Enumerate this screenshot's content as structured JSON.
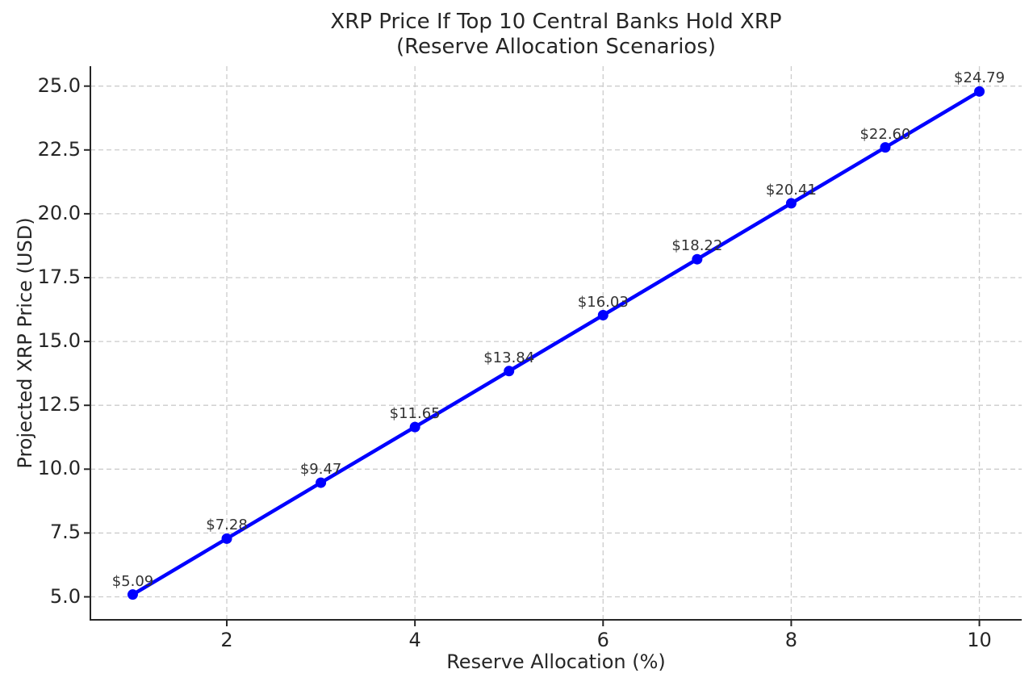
{
  "chart_data": {
    "type": "line",
    "title": "XRP Price If Top 10 Central Banks Hold XRP",
    "subtitle": "(Reserve Allocation Scenarios)",
    "xlabel": "Reserve Allocation (%)",
    "ylabel": "Projected XRP Price (USD)",
    "series": [
      {
        "name": "Projected XRP Price",
        "x": [
          1,
          2,
          3,
          4,
          5,
          6,
          7,
          8,
          9,
          10
        ],
        "y": [
          5.09,
          7.28,
          9.47,
          11.65,
          13.84,
          16.03,
          18.22,
          20.41,
          22.6,
          24.79
        ],
        "point_labels": [
          "$5.09",
          "$7.28",
          "$9.47",
          "$11.65",
          "$13.84",
          "$16.03",
          "$18.22",
          "$20.41",
          "$22.60",
          "$24.79"
        ],
        "color": "#0000ff",
        "marker": "circle"
      }
    ],
    "xticks": [
      2,
      4,
      6,
      8,
      10
    ],
    "xtick_labels": [
      "2",
      "4",
      "6",
      "8",
      "10"
    ],
    "yticks": [
      5.0,
      7.5,
      10.0,
      12.5,
      15.0,
      17.5,
      20.0,
      22.5,
      25.0
    ],
    "ytick_labels": [
      "5.0",
      "7.5",
      "10.0",
      "12.5",
      "15.0",
      "17.5",
      "20.0",
      "22.5",
      "25.0"
    ],
    "xlim": [
      0.55,
      10.45
    ],
    "ylim": [
      4.1,
      25.78
    ],
    "grid": true,
    "grid_style": "dashed",
    "legend": "none",
    "colors": {
      "line": "#0000ff",
      "marker": "#0000ff",
      "grid": "#cccccc",
      "spine": "#262626",
      "tick": "#262626",
      "tick_label": "#262626",
      "data_label": "#333333",
      "title": "#262626",
      "background": "#ffffff"
    }
  }
}
